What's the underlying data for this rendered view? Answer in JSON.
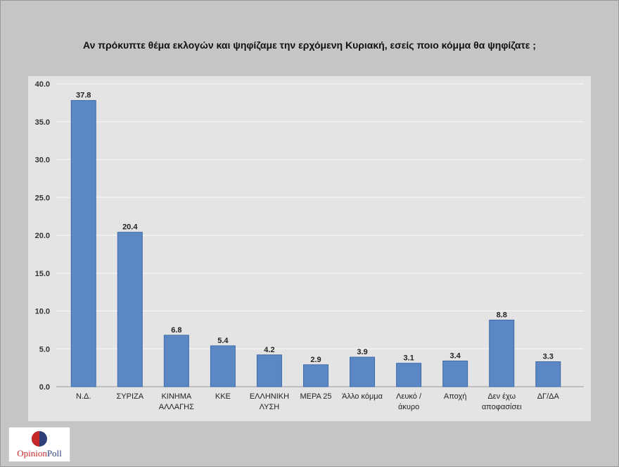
{
  "chart_data": {
    "type": "bar",
    "title": "Αν πρόκυπτε θέμα εκλογών και ψηφίζαμε την ερχόμενη Κυριακή, εσείς ποιο κόμμα θα ψηφίζατε ;",
    "categories": [
      [
        "Ν.Δ."
      ],
      [
        "ΣΥΡΙΖΑ"
      ],
      [
        "ΚΙΝΗΜΑ",
        "ΑΛΛΑΓΗΣ"
      ],
      [
        "ΚΚΕ"
      ],
      [
        "ΕΛΛΗΝΙΚΗ",
        "ΛΥΣΗ"
      ],
      [
        "ΜΕΡΑ 25"
      ],
      [
        "Άλλο κόμμα"
      ],
      [
        "Λευκό /",
        "άκυρο"
      ],
      [
        "Αποχή"
      ],
      [
        "Δεν έχω",
        "αποφασίσει"
      ],
      [
        "ΔΓ/ΔΑ"
      ]
    ],
    "values": [
      37.8,
      20.4,
      6.8,
      5.4,
      4.2,
      2.9,
      3.9,
      3.1,
      3.4,
      8.8,
      3.3
    ],
    "value_labels": [
      "37.8",
      "20.4",
      "6.8",
      "5.4",
      "4.2",
      "2.9",
      "3.9",
      "3.1",
      "3.4",
      "8.8",
      "3.3"
    ],
    "ylim": [
      0,
      40
    ],
    "yticks": [
      "0.0",
      "5.0",
      "10.0",
      "15.0",
      "20.0",
      "25.0",
      "30.0",
      "35.0",
      "40.0"
    ],
    "xlabel": "",
    "ylabel": "",
    "grid": true,
    "bar_color": "#5b87c5",
    "bar_edge_color": "#3e6aa8"
  },
  "logo": {
    "name": "OpinionPoll",
    "part1": "Opinion",
    "part2": "Poll"
  }
}
